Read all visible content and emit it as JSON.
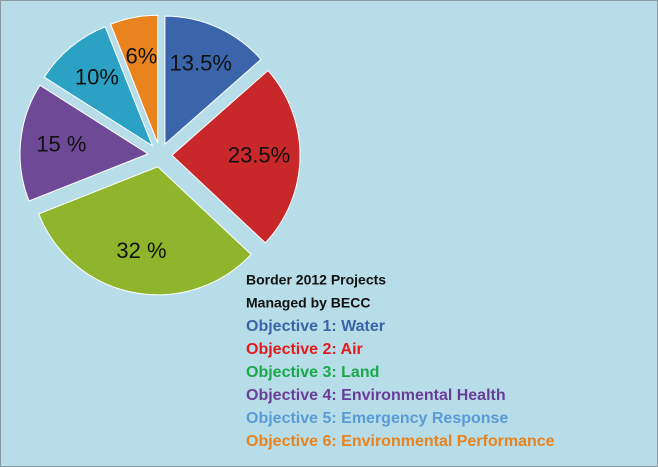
{
  "chart_data": {
    "type": "pie",
    "categories": [
      "Objective 1: Water",
      "Objective 2: Air",
      "Objective 3: Land",
      "Objective 4: Environmental Health",
      "Objective 5: Emergency Response",
      "Objective 6: Environmental Performance"
    ],
    "values": [
      13.5,
      23.5,
      32,
      15,
      10,
      6
    ],
    "value_labels": [
      "13.5%",
      "23.5%",
      "32 %",
      "15 %",
      "10%",
      "6%"
    ],
    "colors": [
      "#3a65ab",
      "#c9282b",
      "#8fb52c",
      "#6e4996",
      "#2ba2c4",
      "#e8831d"
    ],
    "legend_colors": [
      "#3b64a8",
      "#e41a1c",
      "#1aa84a",
      "#6a3d96",
      "#5b9bd5",
      "#e8831d"
    ],
    "legend_title": [
      "Border 2012 Projects",
      "Managed by BECC"
    ],
    "legend": "lower right"
  }
}
